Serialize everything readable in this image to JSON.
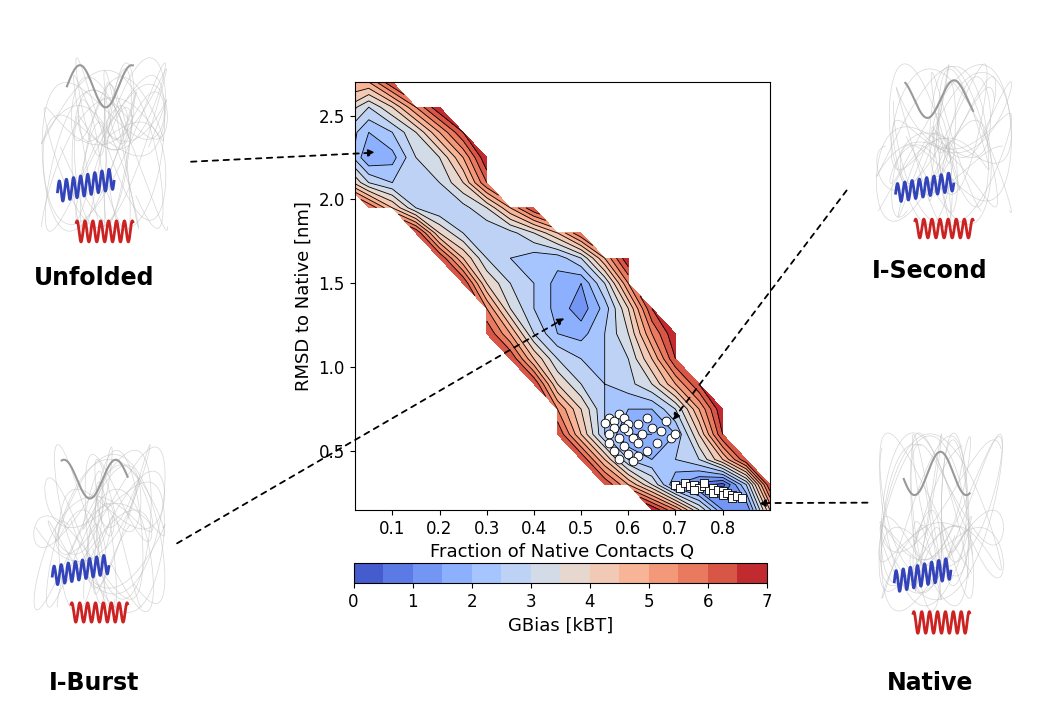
{
  "chart_data": {
    "type": "contour",
    "xlabel": "Fraction of Native Contacts Q",
    "ylabel": "RMSD to Native [nm]",
    "xlim": [
      0.02,
      0.9
    ],
    "ylim": [
      0.15,
      2.7
    ],
    "xticks": [
      0.1,
      0.2,
      0.3,
      0.4,
      0.5,
      0.6,
      0.7,
      0.8
    ],
    "yticks": [
      0.5,
      1.0,
      1.5,
      2.0,
      2.5
    ],
    "x": [
      0.0,
      0.05,
      0.1,
      0.15,
      0.2,
      0.25,
      0.3,
      0.35,
      0.4,
      0.45,
      0.5,
      0.55,
      0.6,
      0.65,
      0.7,
      0.75,
      0.8,
      0.85,
      0.9
    ],
    "y": [
      0.15,
      0.3,
      0.45,
      0.6,
      0.75,
      0.9,
      1.05,
      1.2,
      1.35,
      1.5,
      1.65,
      1.8,
      1.95,
      2.1,
      2.25,
      2.4,
      2.55,
      2.7
    ],
    "values": [
      [
        null,
        null,
        null,
        null,
        null,
        null,
        null,
        null,
        null,
        null,
        null,
        null,
        null,
        7.0,
        5.5,
        3.5,
        1.5,
        1.0,
        4.5
      ],
      [
        null,
        null,
        null,
        null,
        null,
        null,
        null,
        null,
        null,
        null,
        null,
        6.5,
        5.0,
        3.5,
        1.5,
        0.8,
        0.3,
        2.5,
        6.5
      ],
      [
        null,
        null,
        null,
        null,
        null,
        null,
        null,
        null,
        null,
        null,
        6.5,
        4.5,
        2.5,
        2.0,
        2.5,
        3.0,
        4.5,
        6.5,
        null
      ],
      [
        null,
        null,
        null,
        null,
        null,
        null,
        null,
        null,
        null,
        6.5,
        4.5,
        2.5,
        1.5,
        1.5,
        2.0,
        4.0,
        6.5,
        null,
        null
      ],
      [
        null,
        null,
        null,
        null,
        null,
        null,
        null,
        null,
        null,
        5.5,
        4.0,
        2.5,
        2.0,
        2.0,
        3.0,
        5.0,
        7.0,
        null,
        null
      ],
      [
        null,
        null,
        null,
        null,
        null,
        null,
        null,
        null,
        6.5,
        4.0,
        3.0,
        2.5,
        2.8,
        3.5,
        5.0,
        6.5,
        null,
        null,
        null
      ],
      [
        null,
        null,
        null,
        null,
        null,
        null,
        null,
        6.5,
        4.5,
        3.0,
        2.5,
        2.5,
        3.0,
        4.5,
        6.5,
        null,
        null,
        null,
        null
      ],
      [
        null,
        null,
        null,
        null,
        null,
        null,
        6.5,
        5.0,
        3.0,
        2.0,
        1.8,
        2.5,
        3.5,
        5.5,
        7.0,
        null,
        null,
        null,
        null
      ],
      [
        null,
        null,
        null,
        null,
        null,
        null,
        5.5,
        3.5,
        2.5,
        1.8,
        1.2,
        2.2,
        4.0,
        6.5,
        null,
        null,
        null,
        null,
        null
      ],
      [
        null,
        null,
        null,
        null,
        null,
        6.5,
        4.0,
        3.0,
        2.5,
        1.8,
        1.5,
        3.0,
        5.5,
        null,
        null,
        null,
        null,
        null,
        null
      ],
      [
        null,
        null,
        null,
        null,
        6.5,
        4.5,
        3.0,
        2.5,
        2.2,
        2.2,
        3.0,
        5.0,
        7.0,
        null,
        null,
        null,
        null,
        null,
        null
      ],
      [
        null,
        null,
        null,
        6.5,
        4.0,
        3.0,
        2.5,
        2.8,
        3.5,
        4.5,
        6.0,
        null,
        null,
        null,
        null,
        null,
        null,
        null,
        null
      ],
      [
        null,
        6.0,
        4.5,
        3.0,
        2.5,
        2.8,
        3.5,
        5.0,
        6.5,
        null,
        null,
        null,
        null,
        null,
        null,
        null,
        null,
        null,
        null
      ],
      [
        4.5,
        3.0,
        2.5,
        2.8,
        3.0,
        4.0,
        6.0,
        null,
        null,
        null,
        null,
        null,
        null,
        null,
        null,
        null,
        null,
        null,
        null
      ],
      [
        3.0,
        1.5,
        1.8,
        3.0,
        3.5,
        5.0,
        7.0,
        null,
        null,
        null,
        null,
        null,
        null,
        null,
        null,
        null,
        null,
        null,
        null
      ],
      [
        3.0,
        2.0,
        2.5,
        3.5,
        5.0,
        6.5,
        null,
        null,
        null,
        null,
        null,
        null,
        null,
        null,
        null,
        null,
        null,
        null,
        null
      ],
      [
        4.0,
        3.0,
        4.0,
        5.5,
        7.0,
        null,
        null,
        null,
        null,
        null,
        null,
        null,
        null,
        null,
        null,
        null,
        null,
        null,
        null
      ],
      [
        5.0,
        5.0,
        6.5,
        null,
        null,
        null,
        null,
        null,
        null,
        null,
        null,
        null,
        null,
        null,
        null,
        null,
        null,
        null,
        null
      ]
    ],
    "colorbar": {
      "label": "GBias [kBT]",
      "range": [
        0,
        7
      ],
      "ticks": [
        0,
        1,
        2,
        3,
        4,
        5,
        6,
        7
      ]
    },
    "points": [
      {
        "type": "scatter",
        "marker": "circle",
        "color": "#ffffff",
        "x": [
          0.56,
          0.57,
          0.58,
          0.59,
          0.6,
          0.57,
          0.56,
          0.58,
          0.6,
          0.61,
          0.62,
          0.59,
          0.57,
          0.6,
          0.62,
          0.64,
          0.63,
          0.65,
          0.67,
          0.68,
          0.66,
          0.69,
          0.61,
          0.58,
          0.56,
          0.55,
          0.64,
          0.7,
          0.62,
          0.59
        ],
        "y": [
          0.7,
          0.68,
          0.72,
          0.7,
          0.66,
          0.64,
          0.6,
          0.58,
          0.62,
          0.58,
          0.55,
          0.53,
          0.5,
          0.48,
          0.47,
          0.5,
          0.6,
          0.64,
          0.62,
          0.68,
          0.55,
          0.58,
          0.44,
          0.45,
          0.55,
          0.67,
          0.7,
          0.6,
          0.66,
          0.64
        ]
      },
      {
        "type": "scatter",
        "marker": "square",
        "color": "#ffffff",
        "x": [
          0.7,
          0.71,
          0.72,
          0.73,
          0.74,
          0.75,
          0.76,
          0.77,
          0.78,
          0.78,
          0.79,
          0.8,
          0.8,
          0.81,
          0.82,
          0.82,
          0.83,
          0.84,
          0.76,
          0.74
        ],
        "y": [
          0.3,
          0.28,
          0.31,
          0.29,
          0.3,
          0.28,
          0.29,
          0.27,
          0.28,
          0.25,
          0.27,
          0.26,
          0.24,
          0.25,
          0.24,
          0.22,
          0.23,
          0.22,
          0.31,
          0.27
        ]
      }
    ],
    "annotations": [
      {
        "text": "Unfolded",
        "x": 0.07,
        "y": 2.28
      },
      {
        "text": "I-Burst",
        "x": 0.47,
        "y": 1.3
      },
      {
        "text": "I-Second",
        "x": 0.69,
        "y": 0.67
      },
      {
        "text": "Native",
        "x": 0.87,
        "y": 0.19
      }
    ]
  }
}
